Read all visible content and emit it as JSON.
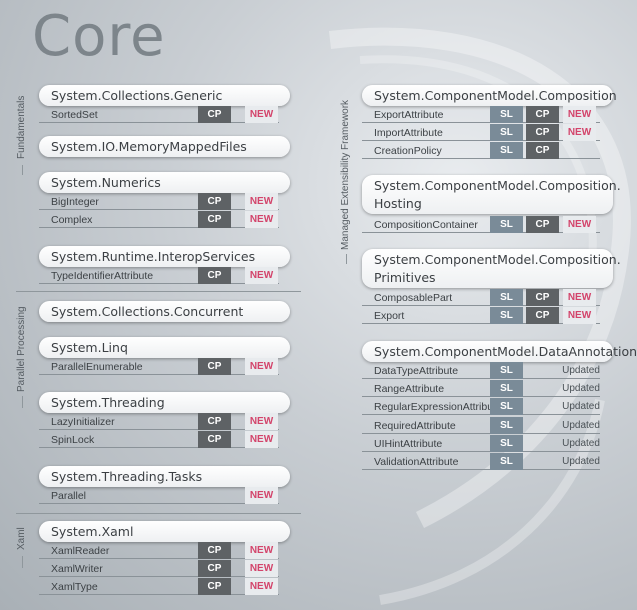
{
  "page": {
    "title": "Core"
  },
  "groups": {
    "fundamentals": "Fundamentals",
    "parallel": "Parallel Processing",
    "xaml": "Xaml",
    "mef": "Managed Extensibility Framework"
  },
  "badges": {
    "sl": "SL",
    "cp": "CP",
    "new": "NEW",
    "updated": "Updated"
  },
  "left": {
    "collections_generic": {
      "title": "System.Collections.Generic",
      "rows": [
        {
          "name": "SortedSet"
        }
      ]
    },
    "memory_mapped": {
      "title": "System.IO.MemoryMappedFiles"
    },
    "numerics": {
      "title": "System.Numerics",
      "rows": [
        {
          "name": "BigInteger"
        },
        {
          "name": "Complex"
        }
      ]
    },
    "interop": {
      "title": "System.Runtime.InteropServices",
      "rows": [
        {
          "name": "TypeIdentifierAttribute"
        }
      ]
    },
    "concurrent": {
      "title": "System.Collections.Concurrent"
    },
    "linq": {
      "title": "System.Linq",
      "rows": [
        {
          "name": "ParallelEnumerable"
        }
      ]
    },
    "threading": {
      "title": "System.Threading",
      "rows": [
        {
          "name": "LazyInitializer"
        },
        {
          "name": "SpinLock"
        }
      ]
    },
    "tasks": {
      "title": "System.Threading.Tasks",
      "rows": [
        {
          "name": "Parallel"
        }
      ]
    },
    "xaml": {
      "title": "System.Xaml",
      "rows": [
        {
          "name": "XamlReader"
        },
        {
          "name": "XamlWriter"
        },
        {
          "name": "XamlType"
        }
      ]
    }
  },
  "right": {
    "composition": {
      "title": "System.ComponentModel.Composition",
      "rows": [
        {
          "name": "ExportAttribute"
        },
        {
          "name": "ImportAttribute"
        },
        {
          "name": "CreationPolicy"
        }
      ]
    },
    "hosting": {
      "title_line1": "System.ComponentModel.Composition.",
      "title_line2": "Hosting",
      "rows": [
        {
          "name": "CompositionContainer"
        }
      ]
    },
    "primitives": {
      "title_line1": "System.ComponentModel.Composition.",
      "title_line2": "Primitives",
      "rows": [
        {
          "name": "ComposablePart"
        },
        {
          "name": "Export"
        }
      ]
    },
    "annotations": {
      "title": "System.ComponentModel.DataAnnotations",
      "rows": [
        {
          "name": "DataTypeAttribute"
        },
        {
          "name": "RangeAttribute"
        },
        {
          "name": "RegularExpressionAttribute"
        },
        {
          "name": "RequiredAttribute"
        },
        {
          "name": "UIHintAttribute"
        },
        {
          "name": "ValidationAttribute"
        }
      ]
    }
  },
  "colors": {
    "new": "#d3446b",
    "cp": "#5e6265",
    "sl": "#7a8b98"
  }
}
